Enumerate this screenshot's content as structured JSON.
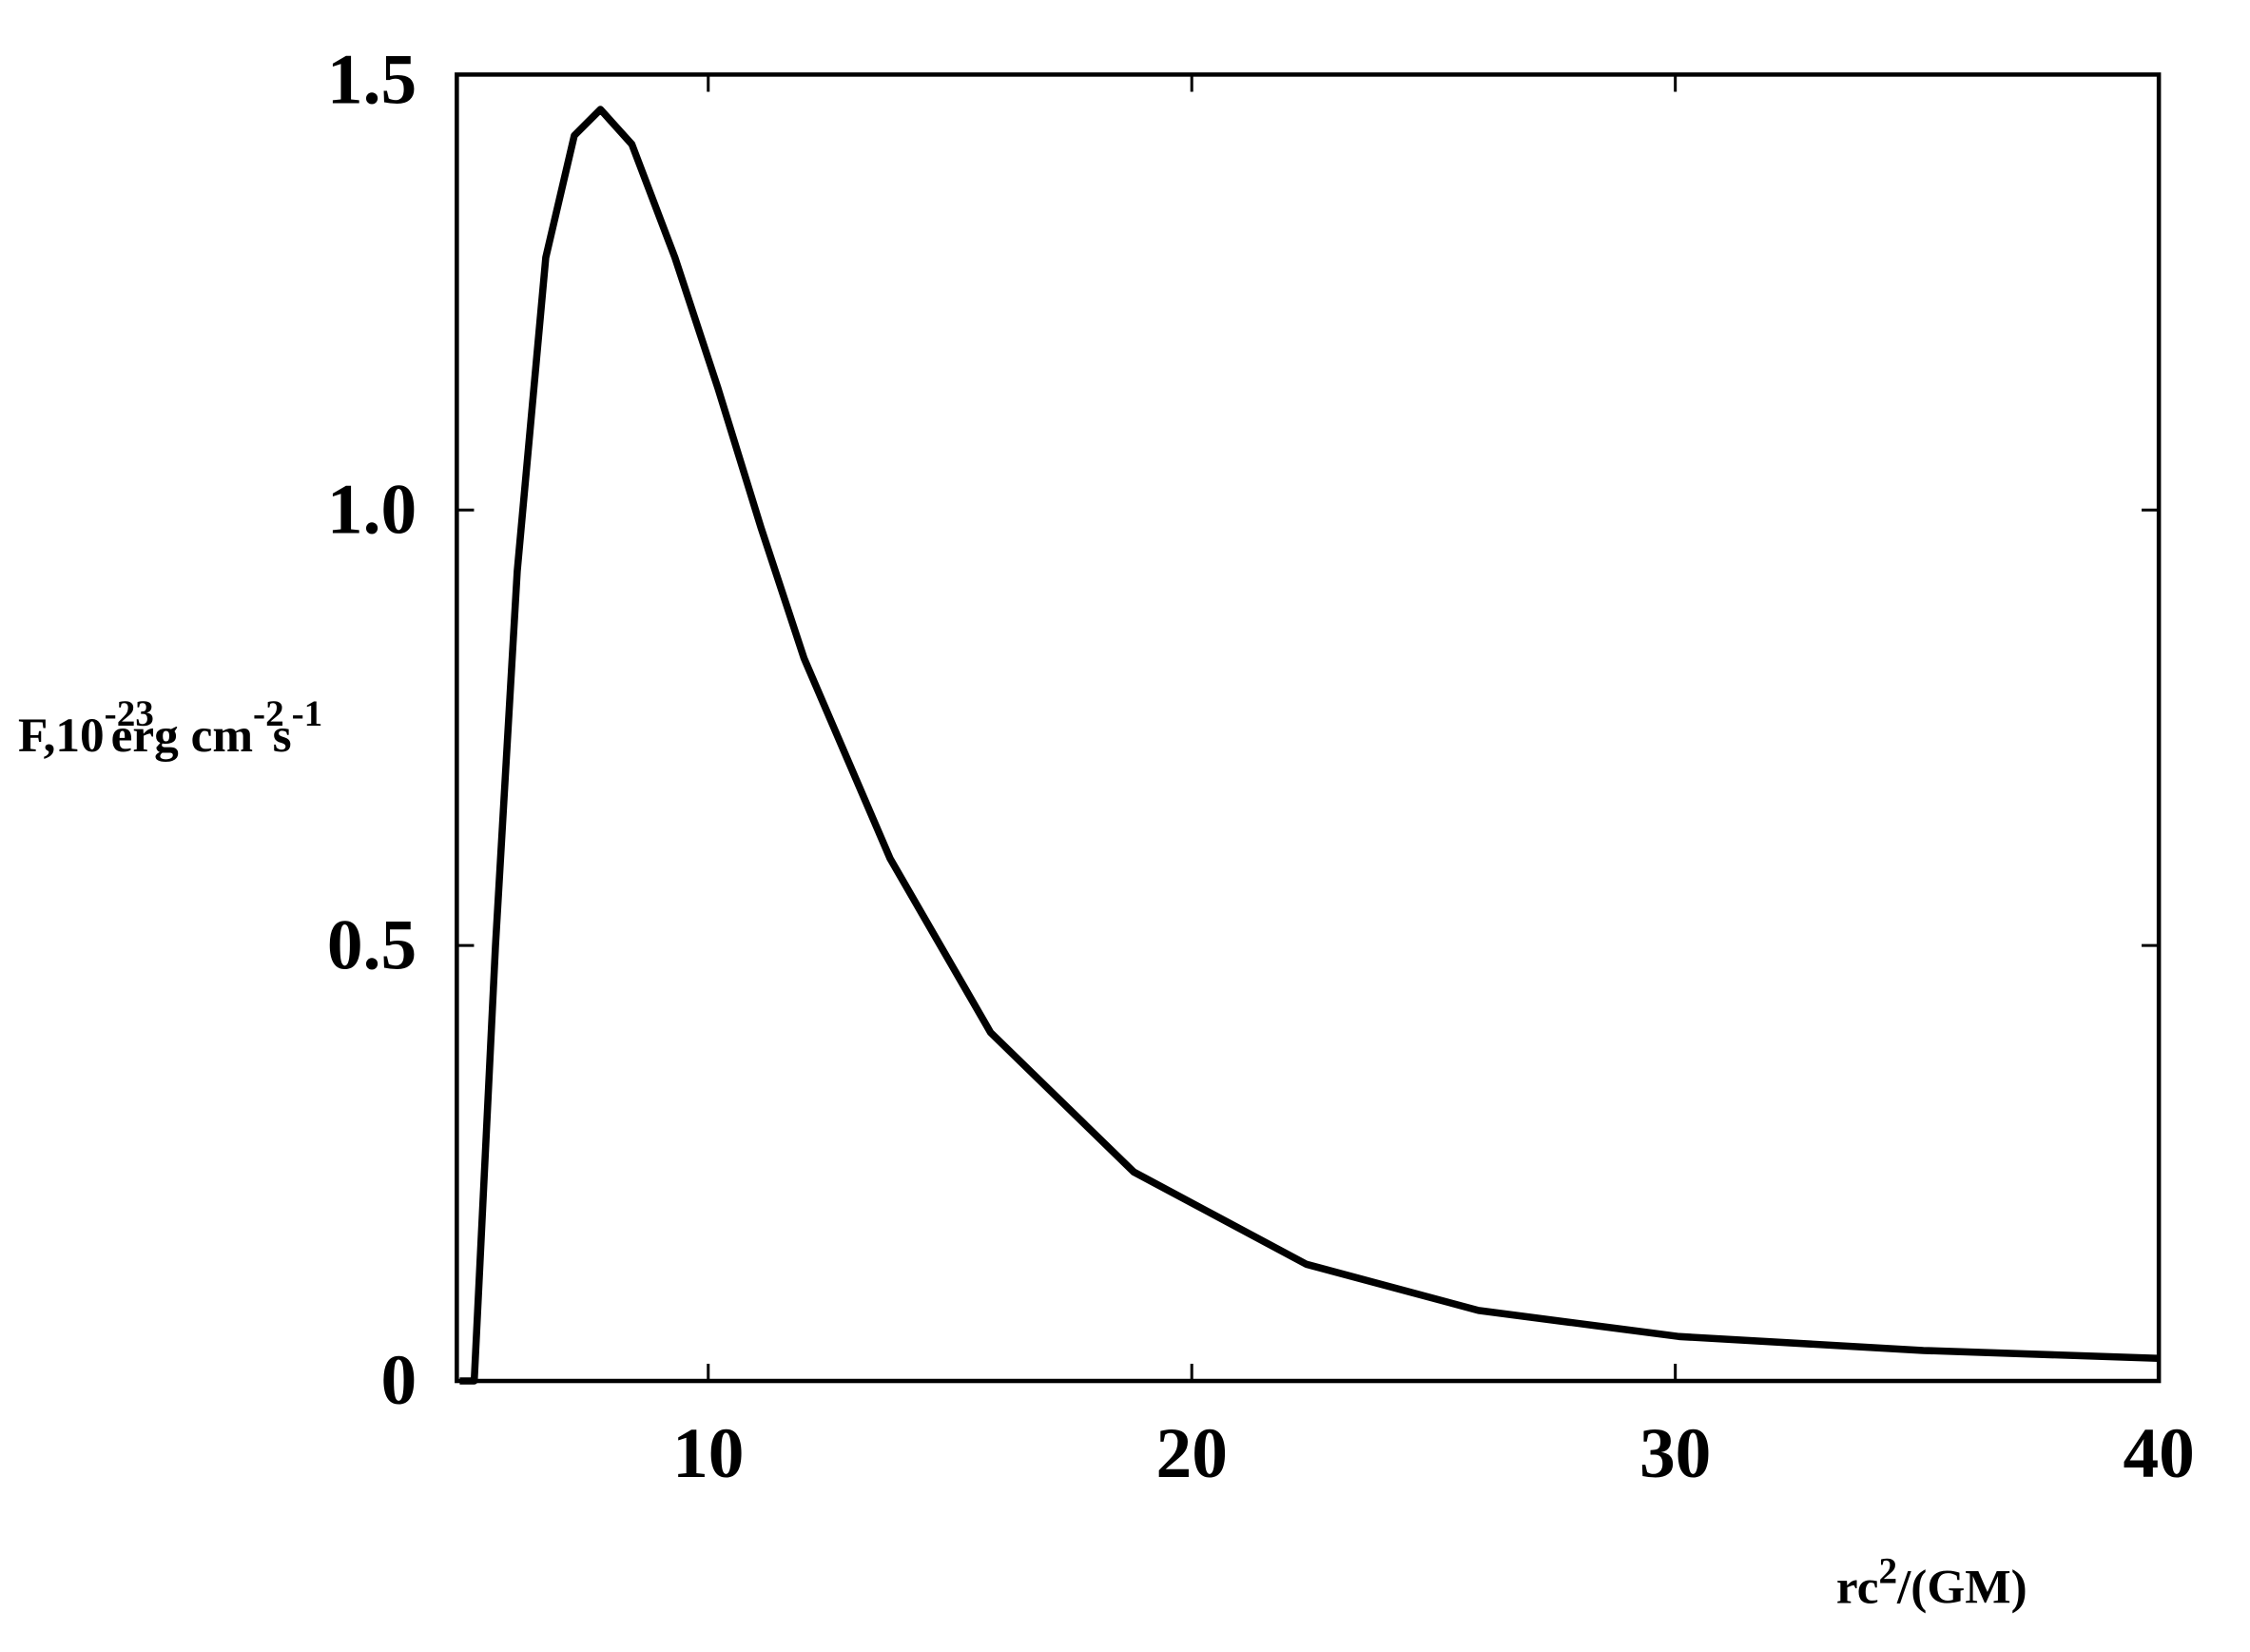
{
  "chart_data": {
    "type": "line",
    "xlabel": [
      "rc",
      "2",
      "/(GM)"
    ],
    "ylabel": [
      "F,10",
      "-23",
      "erg  cm",
      "-2",
      "s",
      "-1"
    ],
    "x": [
      4.86,
      5.16,
      5.6,
      6.05,
      6.64,
      7.23,
      7.77,
      8.42,
      9.31,
      10.2,
      11.09,
      11.98,
      13.76,
      15.84,
      18.8,
      22.37,
      25.93,
      30.08,
      35.13,
      40
    ],
    "series": [
      {
        "color": "#000000",
        "values": [
          0,
          0,
          0.5,
          0.93,
          1.29,
          1.43,
          1.46,
          1.42,
          1.29,
          1.14,
          0.98,
          0.83,
          0.6,
          0.4,
          0.24,
          0.134,
          0.081,
          0.051,
          0.035,
          0.026
        ]
      }
    ],
    "xlim": [
      4.8,
      40
    ],
    "ylim": [
      0,
      1.5
    ],
    "xticks": [
      10,
      20,
      30,
      40
    ],
    "yticks": [
      0,
      0.5,
      {
        "value": 1,
        "label": "1.0"
      },
      1.5
    ]
  }
}
